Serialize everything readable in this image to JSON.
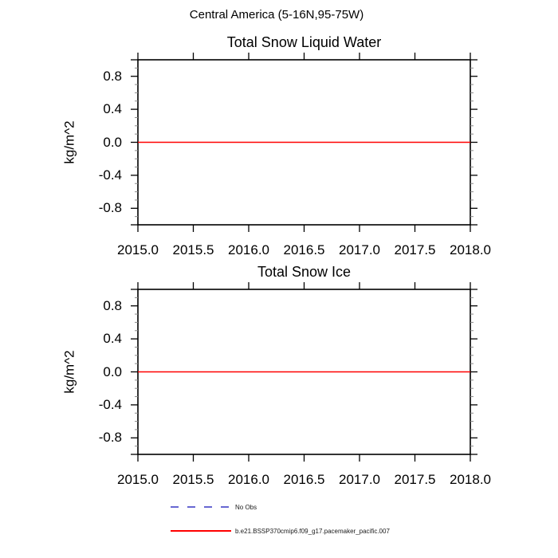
{
  "main_title": "Central America (5-16N,95-75W)",
  "colors": {
    "series": "#ff0000",
    "no_obs": "#6767d2",
    "frame": "#000000",
    "major_tick": "#000000",
    "minor_tick": "#8a8a8a",
    "text": "#000000"
  },
  "legend": {
    "items": [
      {
        "label": "No Obs",
        "color": "#6767d2",
        "style": "dashed"
      },
      {
        "label": "b.e21.BSSP370cmip6.f09_g17.pacemaker_pacific.007",
        "color": "#ff0000",
        "style": "solid"
      }
    ]
  },
  "chart_data": [
    {
      "type": "line",
      "title": "Total Snow Liquid Water",
      "ylabel": "kg/m^2",
      "xlabel": "",
      "xlim": [
        2015.0,
        2018.0
      ],
      "ylim": [
        -1.0,
        1.0
      ],
      "grid": false,
      "x_tick_values": [
        2015.0,
        2015.5,
        2016.0,
        2016.5,
        2017.0,
        2017.5,
        2018.0
      ],
      "x_tick_labels": [
        "2015.0",
        "2015.5",
        "2016.0",
        "2016.5",
        "2017.0",
        "2017.5",
        "2018.0"
      ],
      "y_tick_values": [
        0.8,
        0.4,
        0.0,
        -0.4,
        -0.8
      ],
      "y_tick_labels": [
        "0.8",
        "0.4",
        "0.0",
        "-0.4",
        "-0.8"
      ],
      "y_minor_step": 0.1,
      "series": [
        {
          "name": "b.e21.BSSP370cmip6.f09_g17.pacemaker_pacific.007",
          "color": "#ff0000",
          "style": "solid",
          "x": [
            2015.0,
            2018.0
          ],
          "y": [
            0.0,
            0.0
          ]
        }
      ]
    },
    {
      "type": "line",
      "title": "Total Snow Ice",
      "ylabel": "kg/m^2",
      "xlabel": "",
      "xlim": [
        2015.0,
        2018.0
      ],
      "ylim": [
        -1.0,
        1.0
      ],
      "grid": false,
      "x_tick_values": [
        2015.0,
        2015.5,
        2016.0,
        2016.5,
        2017.0,
        2017.5,
        2018.0
      ],
      "x_tick_labels": [
        "2015.0",
        "2015.5",
        "2016.0",
        "2016.5",
        "2017.0",
        "2017.5",
        "2018.0"
      ],
      "y_tick_values": [
        0.8,
        0.4,
        0.0,
        -0.4,
        -0.8
      ],
      "y_tick_labels": [
        "0.8",
        "0.4",
        "0.0",
        "-0.4",
        "-0.8"
      ],
      "y_minor_step": 0.1,
      "series": [
        {
          "name": "b.e21.BSSP370cmip6.f09_g17.pacemaker_pacific.007",
          "color": "#ff0000",
          "style": "solid",
          "x": [
            2015.0,
            2018.0
          ],
          "y": [
            0.0,
            0.0
          ]
        }
      ]
    }
  ]
}
